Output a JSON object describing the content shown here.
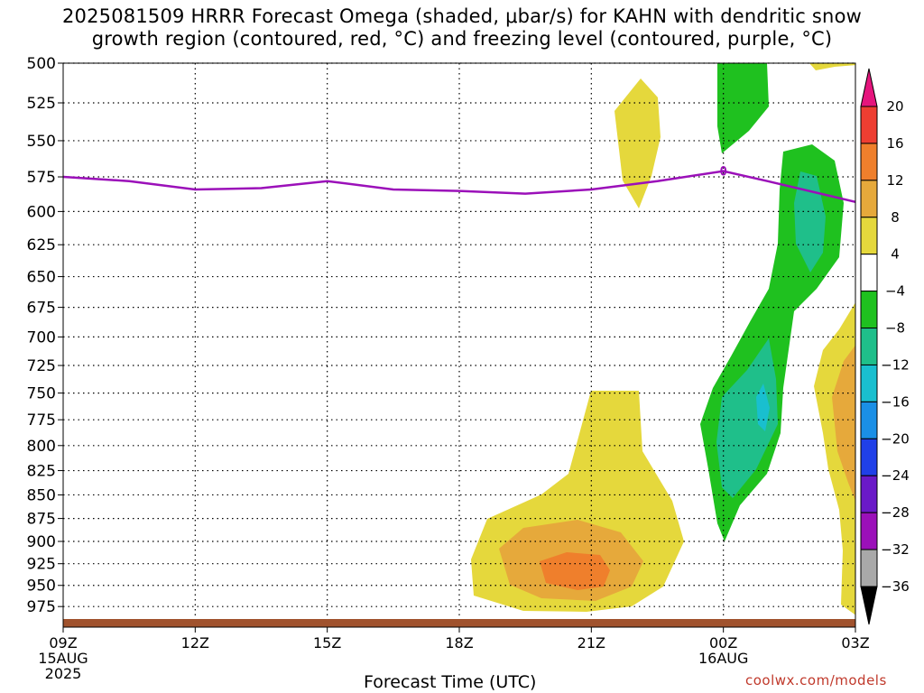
{
  "title": {
    "line1": "2025081509 HRRR Forecast Omega (shaded, μbar/s) for KAHN with dendritic snow",
    "line2": "growth region (contoured, red, °C) and freezing level (contoured, purple, °C)"
  },
  "xaxis_title": "Forecast Time (UTC)",
  "credit": "coolwx.com/models",
  "chart_data": {
    "type": "heatmap",
    "y_ticks": [
      500,
      525,
      550,
      575,
      600,
      625,
      650,
      675,
      700,
      725,
      750,
      775,
      800,
      825,
      850,
      875,
      900,
      925,
      950,
      975
    ],
    "ylim": [
      500,
      1000
    ],
    "x_ticks": [
      {
        "label": "09Z",
        "sub": [
          "15AUG",
          "2025"
        ]
      },
      {
        "label": "12Z",
        "sub": []
      },
      {
        "label": "15Z",
        "sub": []
      },
      {
        "label": "18Z",
        "sub": []
      },
      {
        "label": "21Z",
        "sub": []
      },
      {
        "label": "00Z",
        "sub": [
          "16AUG"
        ]
      },
      {
        "label": "03Z",
        "sub": []
      }
    ],
    "grid": true,
    "colorbar": {
      "levels": [
        "20",
        "16",
        "12",
        "8",
        "4",
        "-4",
        "-8",
        "-12",
        "-16",
        "-20",
        "-24",
        "-28",
        "-32",
        "-36"
      ],
      "colors": [
        "#e5157d",
        "#ee3e32",
        "#ef7f2c",
        "#e6a93b",
        "#e5d83c",
        "#ffffff",
        "#1fc11f",
        "#1fbf8a",
        "#19bfcf",
        "#1a8fe6",
        "#2040e8",
        "#6a19c8",
        "#9b10b9",
        "#a9a9a9",
        "#000000"
      ],
      "top_color": "#e5157d",
      "bottom_color": "#000000"
    },
    "freezing_level": {
      "label": "0",
      "color": "#9b10b9",
      "hours": [
        0,
        1.5,
        3,
        4.5,
        6,
        7.5,
        9,
        10.5,
        12,
        13.5,
        15,
        16,
        18
      ],
      "pressure": [
        575,
        578,
        584,
        583,
        578,
        584,
        585,
        587,
        584,
        578,
        571,
        578,
        593
      ]
    }
  }
}
